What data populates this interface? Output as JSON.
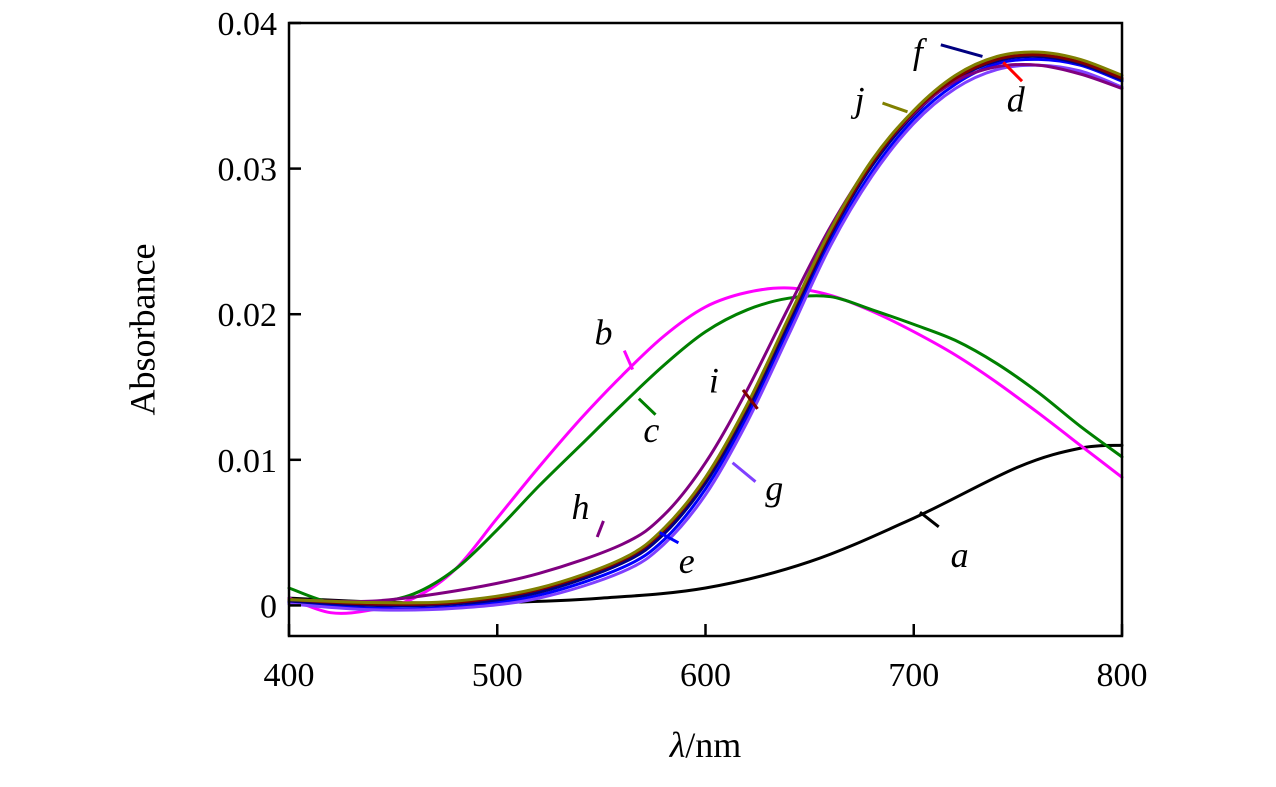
{
  "chart_data": {
    "type": "line",
    "title": "",
    "xlabel_italic": "λ",
    "xlabel_rest": "/nm",
    "ylabel": "Absorbance",
    "xlim": [
      400,
      800
    ],
    "ylim": [
      -0.0021,
      0.04
    ],
    "x_ticks": [
      400,
      500,
      600,
      700,
      800
    ],
    "y_ticks": [
      0,
      0.01,
      0.02,
      0.03,
      0.04
    ],
    "x_tick_labels": [
      "400",
      "500",
      "600",
      "700",
      "800"
    ],
    "y_tick_labels": [
      "0",
      "0.01",
      "0.02",
      "0.03",
      "0.04"
    ],
    "grid": false,
    "legend": "none",
    "series": [
      {
        "name": "a",
        "color": "#000000",
        "x": [
          400,
          450,
          500,
          550,
          600,
          650,
          700,
          750,
          780,
          800
        ],
        "y": [
          0.0005,
          0.0002,
          0.0002,
          0.0005,
          0.0012,
          0.003,
          0.006,
          0.0095,
          0.0108,
          0.011
        ]
      },
      {
        "name": "b",
        "color": "#ff00ff",
        "x": [
          400,
          420,
          440,
          460,
          480,
          500,
          520,
          540,
          560,
          580,
          600,
          620,
          640,
          660,
          680,
          700,
          720,
          740,
          760,
          780,
          800
        ],
        "y": [
          0.0005,
          -0.0005,
          -0.0003,
          0.0005,
          0.0025,
          0.006,
          0.0095,
          0.0128,
          0.0158,
          0.0185,
          0.0205,
          0.0215,
          0.0218,
          0.0213,
          0.0202,
          0.0188,
          0.0172,
          0.0153,
          0.0132,
          0.011,
          0.0088
        ]
      },
      {
        "name": "c",
        "color": "#008000",
        "x": [
          400,
          420,
          440,
          460,
          480,
          500,
          520,
          540,
          560,
          580,
          600,
          620,
          640,
          660,
          680,
          700,
          720,
          740,
          760,
          780,
          800
        ],
        "y": [
          0.0012,
          0.0002,
          0.0002,
          0.0008,
          0.0025,
          0.0052,
          0.0082,
          0.011,
          0.0138,
          0.0165,
          0.0188,
          0.0203,
          0.0211,
          0.0212,
          0.0203,
          0.0193,
          0.0182,
          0.0166,
          0.0146,
          0.0123,
          0.0102
        ]
      },
      {
        "name": "d",
        "color": "#ff0000",
        "x": [
          400,
          440,
          480,
          520,
          560,
          580,
          600,
          620,
          640,
          660,
          680,
          700,
          720,
          740,
          760,
          780,
          800
        ],
        "y": [
          0.0003,
          0.0001,
          0.0002,
          0.001,
          0.003,
          0.005,
          0.0085,
          0.0135,
          0.0195,
          0.0255,
          0.0303,
          0.0338,
          0.0362,
          0.0375,
          0.0378,
          0.0373,
          0.0362
        ]
      },
      {
        "name": "e",
        "color": "#0000ff",
        "x": [
          400,
          440,
          480,
          520,
          560,
          580,
          600,
          620,
          640,
          660,
          680,
          700,
          720,
          740,
          760,
          780,
          800
        ],
        "y": [
          0.0002,
          -0.0002,
          -0.0001,
          0.0007,
          0.0026,
          0.0045,
          0.008,
          0.013,
          0.019,
          0.025,
          0.0298,
          0.0334,
          0.0358,
          0.0372,
          0.0375,
          0.0371,
          0.036
        ]
      },
      {
        "name": "f",
        "color": "#000080",
        "x": [
          400,
          440,
          480,
          520,
          560,
          580,
          600,
          620,
          640,
          660,
          680,
          700,
          720,
          740,
          760,
          780,
          800
        ],
        "y": [
          0.0003,
          0.0,
          0.0001,
          0.0009,
          0.0029,
          0.0049,
          0.0084,
          0.0134,
          0.0194,
          0.0254,
          0.0302,
          0.0337,
          0.0361,
          0.0374,
          0.0377,
          0.0372,
          0.0361
        ]
      },
      {
        "name": "g",
        "color": "#8040ff",
        "x": [
          400,
          440,
          480,
          520,
          560,
          580,
          600,
          620,
          640,
          660,
          680,
          700,
          720,
          740,
          760,
          780,
          800
        ],
        "y": [
          0.0001,
          -0.0003,
          -0.0002,
          0.0005,
          0.0023,
          0.0042,
          0.0076,
          0.0126,
          0.0186,
          0.0247,
          0.0295,
          0.0331,
          0.0355,
          0.0368,
          0.0371,
          0.0367,
          0.0356
        ]
      },
      {
        "name": "h",
        "color": "#800080",
        "x": [
          400,
          440,
          480,
          520,
          560,
          580,
          600,
          620,
          640,
          660,
          680,
          700,
          720,
          740,
          760,
          780,
          800
        ],
        "y": [
          0.0004,
          0.0003,
          0.001,
          0.0022,
          0.0042,
          0.0062,
          0.0098,
          0.0148,
          0.0205,
          0.026,
          0.0305,
          0.0338,
          0.036,
          0.037,
          0.0371,
          0.0365,
          0.0355
        ]
      },
      {
        "name": "i",
        "color": "#800000",
        "x": [
          400,
          440,
          480,
          520,
          560,
          580,
          600,
          620,
          640,
          660,
          680,
          700,
          720,
          740,
          760,
          780,
          800
        ],
        "y": [
          0.0004,
          0.0001,
          0.0002,
          0.0011,
          0.0031,
          0.0052,
          0.0087,
          0.0137,
          0.0197,
          0.0256,
          0.0304,
          0.0339,
          0.0362,
          0.0375,
          0.0378,
          0.0373,
          0.0362
        ]
      },
      {
        "name": "j",
        "color": "#808000",
        "x": [
          400,
          440,
          480,
          520,
          560,
          580,
          600,
          620,
          640,
          660,
          680,
          700,
          720,
          740,
          760,
          780,
          800
        ],
        "y": [
          0.0004,
          0.0002,
          0.0003,
          0.0012,
          0.0032,
          0.0053,
          0.0088,
          0.0138,
          0.0198,
          0.0258,
          0.0306,
          0.034,
          0.0364,
          0.0377,
          0.038,
          0.0375,
          0.0364
        ]
      }
    ],
    "annotations": [
      {
        "text": "a",
        "at": [
          722,
          0.0032
        ],
        "leader_from": [
          712,
          0.0054
        ],
        "leader_to": [
          703,
          0.0064
        ]
      },
      {
        "text": "b",
        "at": [
          551,
          0.0185
        ],
        "leader_from": [
          561,
          0.0175
        ],
        "leader_to": [
          565,
          0.0162
        ]
      },
      {
        "text": "c",
        "at": [
          574,
          0.0118
        ],
        "leader_from": [
          576,
          0.0131
        ],
        "leader_to": [
          568,
          0.0142
        ]
      },
      {
        "text": "d",
        "at": [
          749,
          0.0345
        ],
        "leader_from": [
          752,
          0.036
        ],
        "leader_to": [
          743,
          0.0373
        ]
      },
      {
        "text": "e",
        "at": [
          591,
          0.0028
        ],
        "leader_from": [
          587,
          0.0043
        ],
        "leader_to": [
          578,
          0.005
        ]
      },
      {
        "text": "f",
        "at": [
          702,
          0.0378
        ],
        "leader_from": [
          713,
          0.0385
        ],
        "leader_to": [
          733,
          0.0377
        ]
      },
      {
        "text": "g",
        "at": [
          633,
          0.0078
        ],
        "leader_from": [
          624,
          0.0085
        ],
        "leader_to": [
          613,
          0.0098
        ]
      },
      {
        "text": "h",
        "at": [
          540,
          0.0065
        ],
        "leader_from": [
          551,
          0.0058
        ],
        "leader_to": [
          548,
          0.0047
        ]
      },
      {
        "text": "i",
        "at": [
          604,
          0.0152
        ],
        "leader_from": [
          618,
          0.0148
        ],
        "leader_to": [
          625,
          0.0135
        ]
      },
      {
        "text": "j",
        "at": [
          674,
          0.0345
        ],
        "leader_from": [
          685,
          0.0345
        ],
        "leader_to": [
          697,
          0.0339
        ]
      }
    ]
  }
}
